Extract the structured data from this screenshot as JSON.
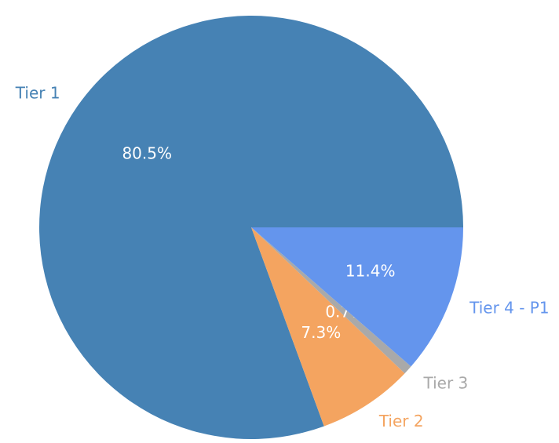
{
  "chart_data": {
    "type": "pie",
    "categories": [
      "Tier 1",
      "Tier 2",
      "Tier 3",
      "Tier 4 - P1"
    ],
    "values": [
      80.5,
      7.3,
      0.7,
      11.4
    ],
    "value_labels": [
      "80.5%",
      "7.3%",
      "0.7%",
      "11.4%"
    ],
    "colors": [
      "#4682b4",
      "#f4a460",
      "#a9a9a9",
      "#6495ed"
    ]
  }
}
